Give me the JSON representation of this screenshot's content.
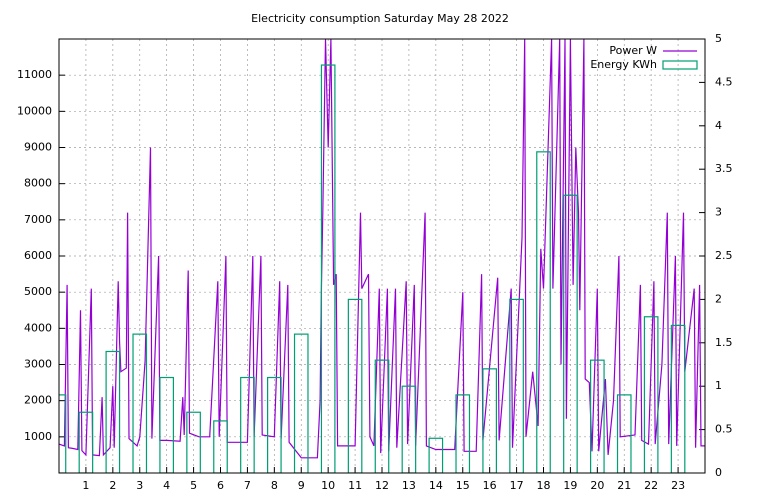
{
  "chart_data": {
    "type": "line",
    "title": "Electricity consumption Saturday May 28 2022",
    "xlim": [
      0,
      24
    ],
    "xticks": [
      1,
      2,
      3,
      4,
      5,
      6,
      7,
      8,
      9,
      10,
      11,
      12,
      13,
      14,
      15,
      16,
      17,
      18,
      19,
      20,
      21,
      22,
      23
    ],
    "ylim": [
      0,
      12000
    ],
    "yticks": [
      1000,
      2000,
      3000,
      4000,
      5000,
      6000,
      7000,
      8000,
      9000,
      10000,
      11000
    ],
    "y2lim": [
      0,
      5
    ],
    "y2ticks": [
      0,
      0.5,
      1,
      1.5,
      2,
      2.5,
      3,
      3.5,
      4,
      4.5,
      5
    ],
    "grid": true,
    "legend": "top-right",
    "series": [
      {
        "name": "Power W",
        "color": "#9400d3",
        "style": "lines",
        "x": [
          0,
          0.2,
          0.3,
          0.35,
          0.5,
          0.7,
          0.8,
          0.85,
          1.0,
          1.2,
          1.25,
          1.5,
          1.6,
          1.65,
          1.9,
          2.0,
          2.05,
          2.2,
          2.25,
          2.3,
          2.5,
          2.55,
          2.6,
          2.9,
          3.0,
          3.2,
          3.4,
          3.45,
          3.7,
          3.75,
          4.0,
          4.5,
          4.6,
          4.65,
          4.8,
          4.85,
          5.2,
          5.6,
          5.9,
          5.95,
          6.2,
          6.25,
          7.0,
          7.2,
          7.25,
          7.5,
          7.55,
          8.0,
          8.2,
          8.25,
          8.5,
          8.55,
          9.0,
          9.6,
          9.7,
          9.75,
          9.8,
          9.9,
          10.0,
          10.1,
          10.2,
          10.3,
          10.35,
          11.0,
          11.2,
          11.25,
          11.5,
          11.55,
          11.7,
          11.9,
          11.95,
          12.2,
          12.25,
          12.5,
          12.55,
          12.9,
          12.95,
          13.2,
          13.25,
          13.6,
          13.65,
          14.0,
          14.7,
          15.0,
          15.05,
          15.5,
          15.7,
          15.75,
          16.3,
          16.35,
          16.8,
          16.85,
          17.2,
          17.3,
          17.35,
          17.6,
          17.8,
          17.9,
          18.0,
          18.3,
          18.35,
          18.6,
          18.65,
          18.8,
          18.85,
          19.0,
          19.1,
          19.2,
          19.3,
          19.35,
          19.5,
          19.55,
          19.7,
          19.8,
          20.0,
          20.05,
          20.3,
          20.4,
          20.6,
          20.8,
          20.85,
          21.4,
          21.6,
          21.65,
          21.9,
          22.1,
          22.15,
          22.4,
          22.6,
          22.65,
          22.9,
          22.95,
          23.2,
          23.25,
          23.6,
          23.65,
          23.8,
          23.85,
          24
        ],
        "values": [
          800,
          750,
          5200,
          700,
          680,
          650,
          4500,
          620,
          500,
          5100,
          500,
          480,
          2100,
          500,
          700,
          2400,
          700,
          5300,
          3600,
          2800,
          2900,
          7200,
          950,
          750,
          1000,
          3100,
          9000,
          950,
          6000,
          900,
          900,
          880,
          2100,
          1050,
          5600,
          1100,
          1000,
          1000,
          5300,
          1000,
          6000,
          850,
          850,
          6000,
          1000,
          6000,
          1050,
          1000,
          5300,
          950,
          5200,
          850,
          420,
          420,
          2000,
          5100,
          7200,
          12000,
          9000,
          12000,
          5200,
          5500,
          750,
          750,
          7200,
          5100,
          5500,
          1000,
          750,
          5100,
          550,
          5100,
          600,
          5100,
          700,
          5300,
          800,
          5200,
          750,
          7200,
          750,
          650,
          650,
          5000,
          600,
          600,
          5500,
          900,
          5400,
          900,
          5100,
          700,
          6500,
          12000,
          1000,
          2800,
          1300,
          6200,
          5100,
          12000,
          5100,
          12000,
          3000,
          12000,
          1500,
          12000,
          5200,
          9000,
          7200,
          4500,
          12000,
          2600,
          2500,
          600,
          5100,
          600,
          2600,
          500,
          2000,
          6000,
          1000,
          1050,
          5200,
          900,
          800,
          5300,
          800,
          3000,
          7200,
          800,
          6000,
          750,
          7200,
          2800,
          5100,
          700,
          5200,
          750,
          750
        ]
      },
      {
        "name": "Energy KWh",
        "color": "#009e73",
        "style": "boxes",
        "axis": "y2",
        "x": [
          0,
          1,
          2,
          3,
          4,
          5,
          6,
          7,
          8,
          9,
          10,
          11,
          12,
          13,
          14,
          15,
          16,
          17,
          18,
          19,
          20,
          21,
          22,
          23
        ],
        "values": [
          0.9,
          0.7,
          1.4,
          1.6,
          1.1,
          0.7,
          0.6,
          1.1,
          1.1,
          1.6,
          4.7,
          2.0,
          1.3,
          1.0,
          0.4,
          0.9,
          1.2,
          2.0,
          3.7,
          3.2,
          1.3,
          0.9,
          1.8,
          1.7
        ]
      }
    ]
  }
}
